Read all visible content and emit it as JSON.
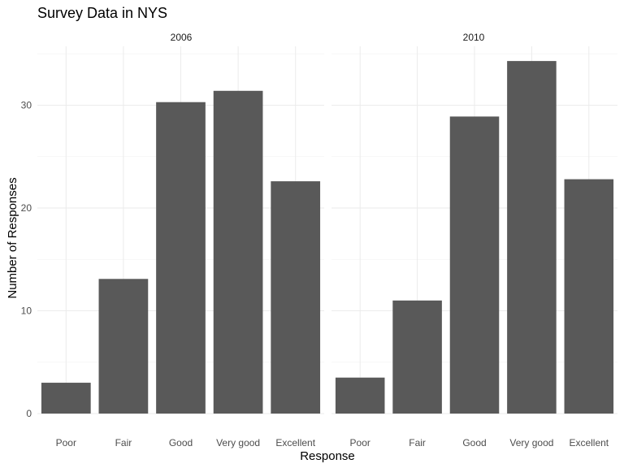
{
  "chart_data": {
    "type": "bar",
    "title": "Survey Data in NYS",
    "xlabel": "Response",
    "ylabel": "Number of Responses",
    "categories": [
      "Poor",
      "Fair",
      "Good",
      "Very good",
      "Excellent"
    ],
    "facets": [
      {
        "label": "2006",
        "values": [
          3,
          13.1,
          30.3,
          31.4,
          22.6
        ]
      },
      {
        "label": "2010",
        "values": [
          3.5,
          11,
          28.9,
          34.3,
          22.8
        ]
      }
    ],
    "yticks": [
      0,
      10,
      20,
      30
    ],
    "ylim": [
      0,
      35.5
    ],
    "grid": true,
    "bar_color": "#595959"
  }
}
